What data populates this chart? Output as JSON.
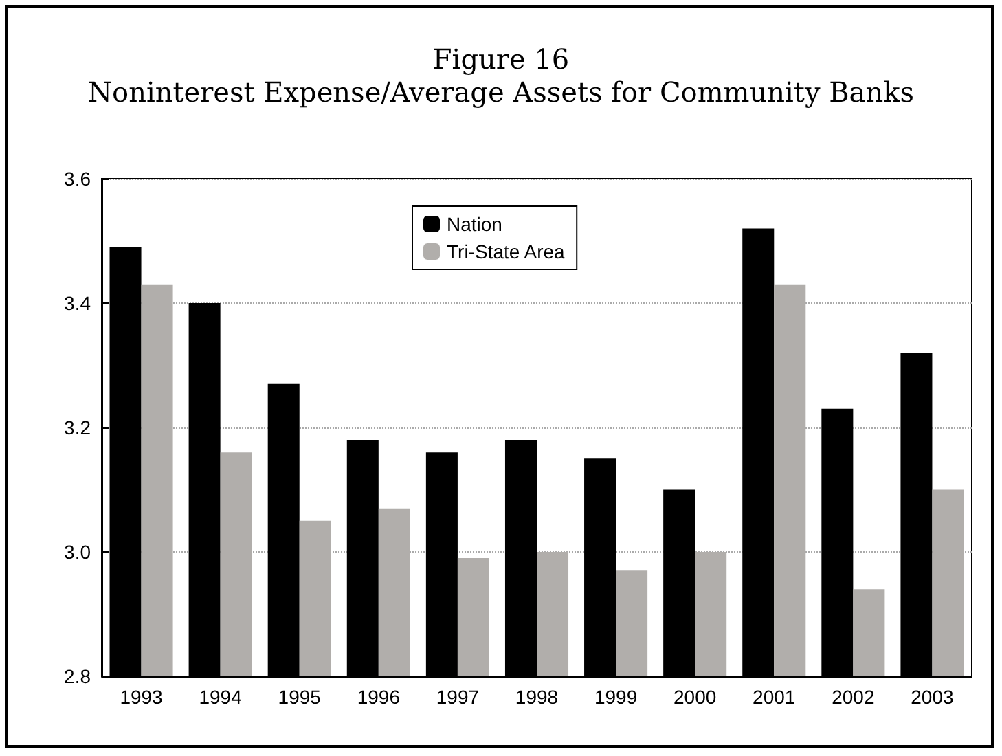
{
  "chart_data": {
    "type": "bar",
    "title": "Figure 16",
    "subtitle": "Noninterest Expense/Average Assets for Community Banks",
    "categories": [
      "1993",
      "1994",
      "1995",
      "1996",
      "1997",
      "1998",
      "1999",
      "2000",
      "2001",
      "2002",
      "2003"
    ],
    "series": [
      {
        "name": "Nation",
        "color": "#000000",
        "values": [
          3.49,
          3.4,
          3.27,
          3.18,
          3.16,
          3.18,
          3.15,
          3.1,
          3.52,
          3.23,
          3.32
        ]
      },
      {
        "name": "Tri-State Area",
        "color": "#b1aeab",
        "values": [
          3.43,
          3.16,
          3.05,
          3.07,
          2.99,
          3.0,
          2.97,
          3.0,
          3.43,
          2.94,
          3.1
        ]
      }
    ],
    "ylim": [
      2.8,
      3.6
    ],
    "yticks": [
      2.8,
      {
        "value": 3,
        "label": "3.0"
      },
      3.2,
      3.4,
      3.6
    ],
    "grid": "y",
    "legend": "top"
  }
}
